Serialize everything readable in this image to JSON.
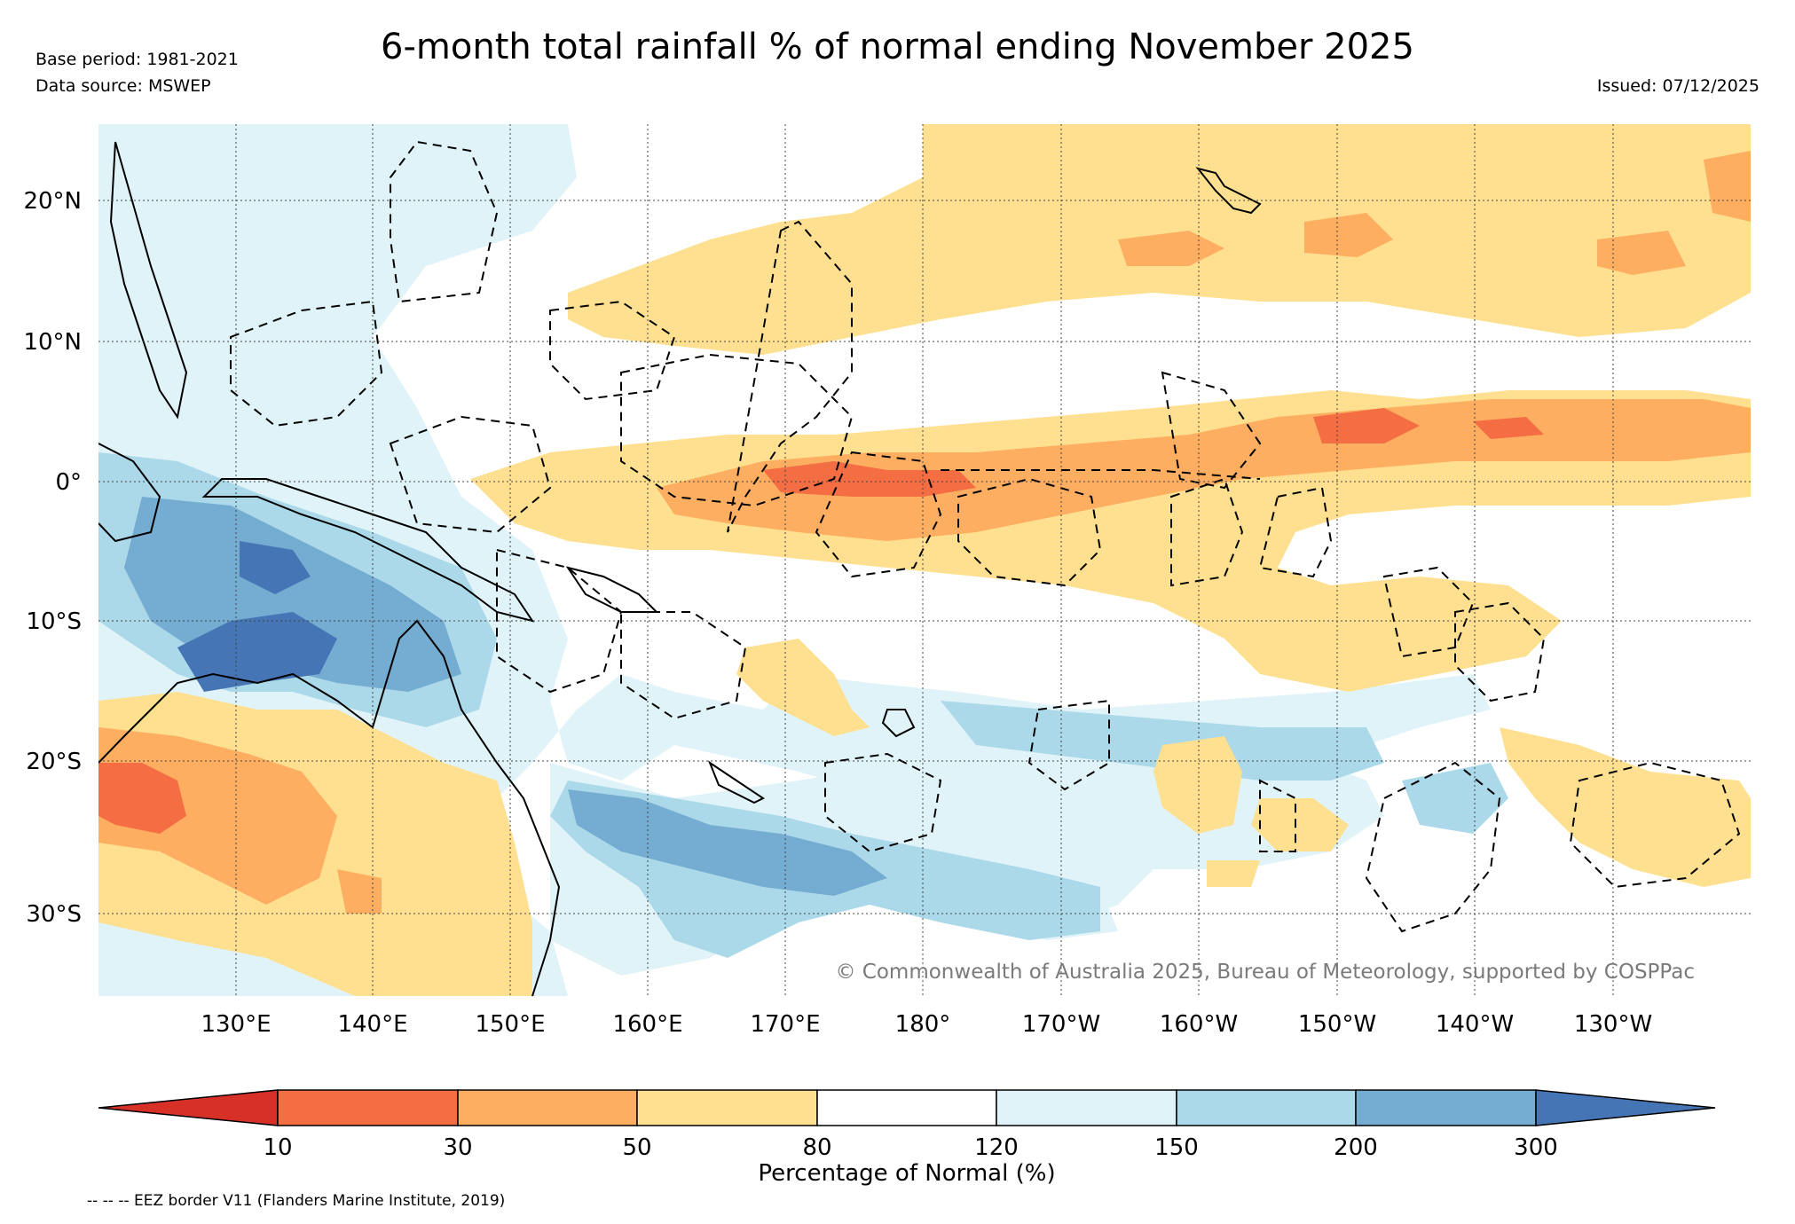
{
  "header": {
    "title": "6-month total rainfall % of normal ending November 2025",
    "base_period": "Base period: 1981-2021",
    "data_source": "Data source: MSWEP",
    "issued": "Issued: 07/12/2025"
  },
  "map": {
    "lon_labels": [
      "130°E",
      "140°E",
      "150°E",
      "160°E",
      "170°E",
      "180°",
      "170°W",
      "160°W",
      "150°W",
      "140°W",
      "130°W"
    ],
    "lat_labels": [
      "20°N",
      "10°N",
      "0°",
      "10°S",
      "20°S",
      "30°S"
    ],
    "copyright": "© Commonwealth of Australia 2025, Bureau of Meteorology, supported by COSPPac"
  },
  "colorbar": {
    "label": "Percentage of Normal (%)",
    "ticks": [
      "10",
      "30",
      "50",
      "80",
      "120",
      "150",
      "200",
      "300"
    ],
    "colors": {
      "below_10": "#d73027",
      "b10_30": "#f46d43",
      "b30_50": "#fdae61",
      "b50_80": "#fee090",
      "b80_120": "#ffffff",
      "b120_150": "#e0f3f8",
      "b150_200": "#abd9e9",
      "b200_300": "#74add1",
      "above_300": "#4575b4"
    }
  },
  "legend": {
    "eez": "-- -- -- EEZ border V11 (Flanders Marine Institute, 2019)"
  }
}
